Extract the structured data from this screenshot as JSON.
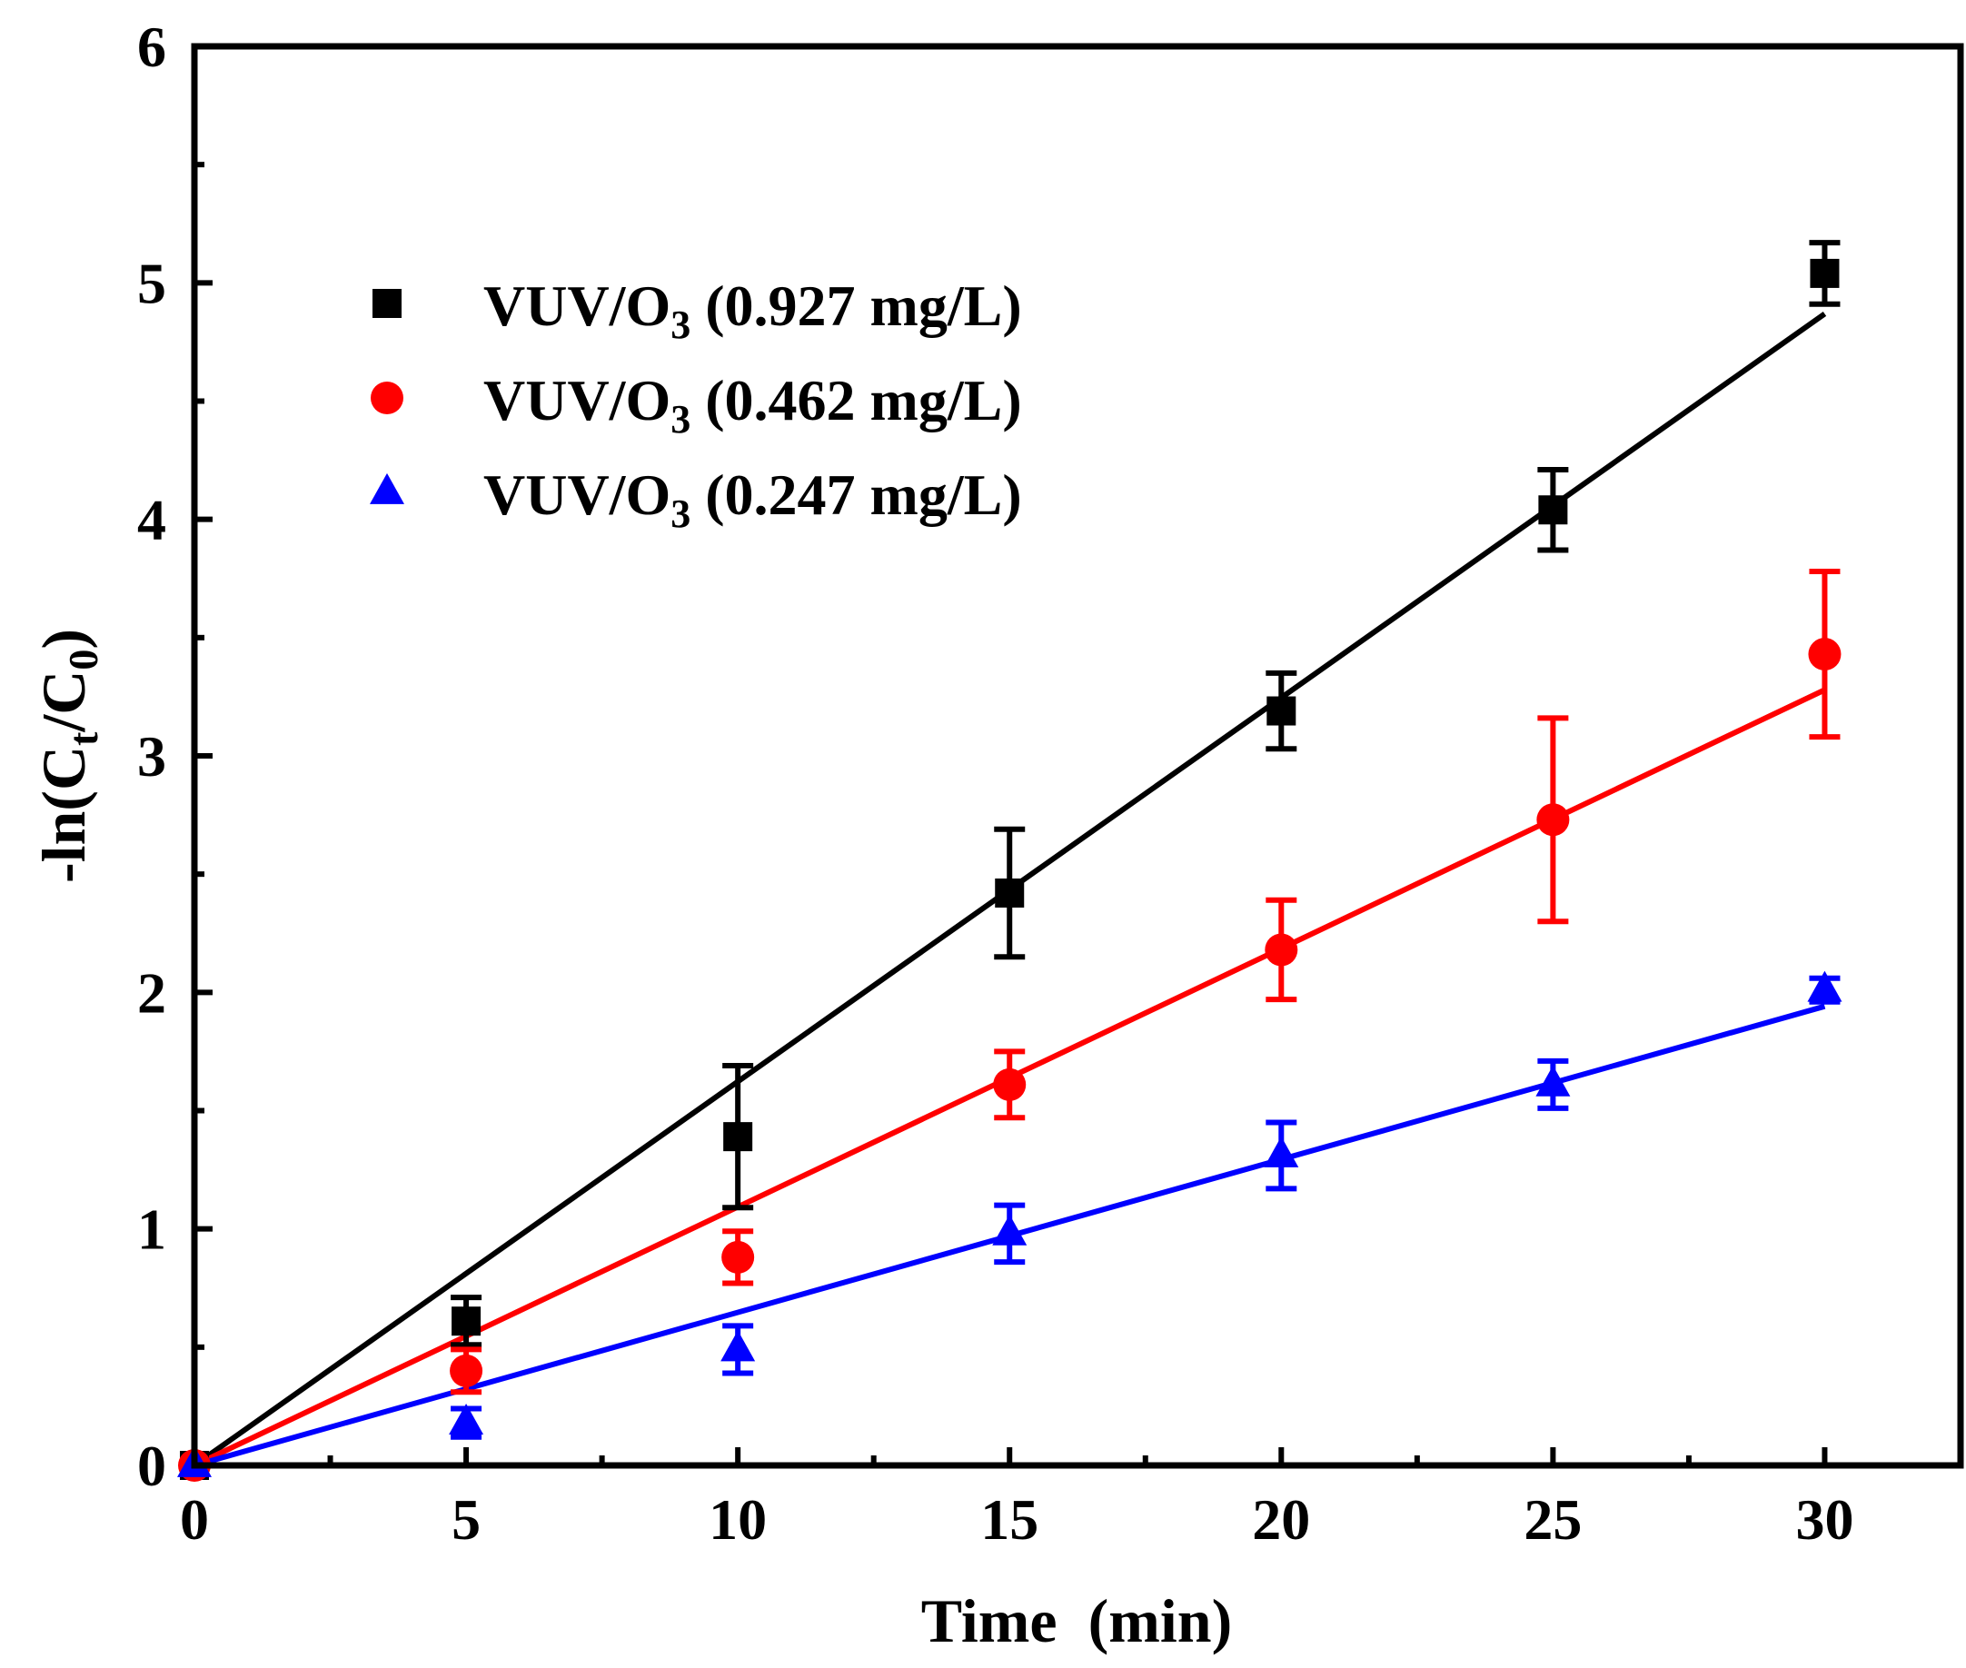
{
  "chart_data": {
    "type": "scatter",
    "title": "",
    "xlabel": "Time  (min)",
    "ylabel": {
      "prefix": "-ln(C",
      "sub1": "t",
      "middle": "/C",
      "sub2": "0",
      "suffix": ")"
    },
    "xlim": [
      0,
      32.5
    ],
    "ylim": [
      0,
      6
    ],
    "xticks": [
      0,
      5,
      10,
      15,
      20,
      25,
      30
    ],
    "yticks": [
      0,
      1,
      2,
      3,
      4,
      5,
      6
    ],
    "x_minor_step": 2.5,
    "y_minor_step": 0.5,
    "grid": false,
    "legend_position": "top-left",
    "series": [
      {
        "name": "VUV/O3 (0.927 mg/L)",
        "legend": {
          "prefix": "VUV/O",
          "sub": "3",
          "suffix": " (0.927 mg/L)"
        },
        "color": "#000000",
        "marker": "square",
        "x": [
          0,
          5,
          10,
          15,
          20,
          25,
          30
        ],
        "y": [
          0,
          0.61,
          1.39,
          2.42,
          3.19,
          4.04,
          5.04
        ],
        "err": [
          0,
          0.1,
          0.3,
          0.27,
          0.16,
          0.17,
          0.13
        ],
        "fit": {
          "slope": 0.1623,
          "intercept": 0
        }
      },
      {
        "name": "VUV/O3 (0.462 mg/L)",
        "legend": {
          "prefix": "VUV/O",
          "sub": "3",
          "suffix": " (0.462 mg/L)"
        },
        "color": "#ff0000",
        "marker": "circle",
        "x": [
          0,
          5,
          10,
          15,
          20,
          25,
          30
        ],
        "y": [
          0,
          0.4,
          0.88,
          1.61,
          2.18,
          2.73,
          3.43
        ],
        "err": [
          0,
          0.09,
          0.11,
          0.14,
          0.21,
          0.43,
          0.35
        ],
        "fit": {
          "slope": 0.1093,
          "intercept": 0
        }
      },
      {
        "name": "VUV/O3 (0.247 mg/L)",
        "legend": {
          "prefix": "VUV/O",
          "sub": "3",
          "suffix": " (0.247 mg/L)"
        },
        "color": "#0000ff",
        "marker": "triangle",
        "x": [
          0,
          5,
          10,
          15,
          20,
          25,
          30
        ],
        "y": [
          0,
          0.18,
          0.49,
          0.98,
          1.31,
          1.61,
          2.01
        ],
        "err": [
          0,
          0.06,
          0.1,
          0.12,
          0.14,
          0.1,
          0.05
        ],
        "fit": {
          "slope": 0.0647,
          "intercept": 0
        }
      }
    ]
  }
}
